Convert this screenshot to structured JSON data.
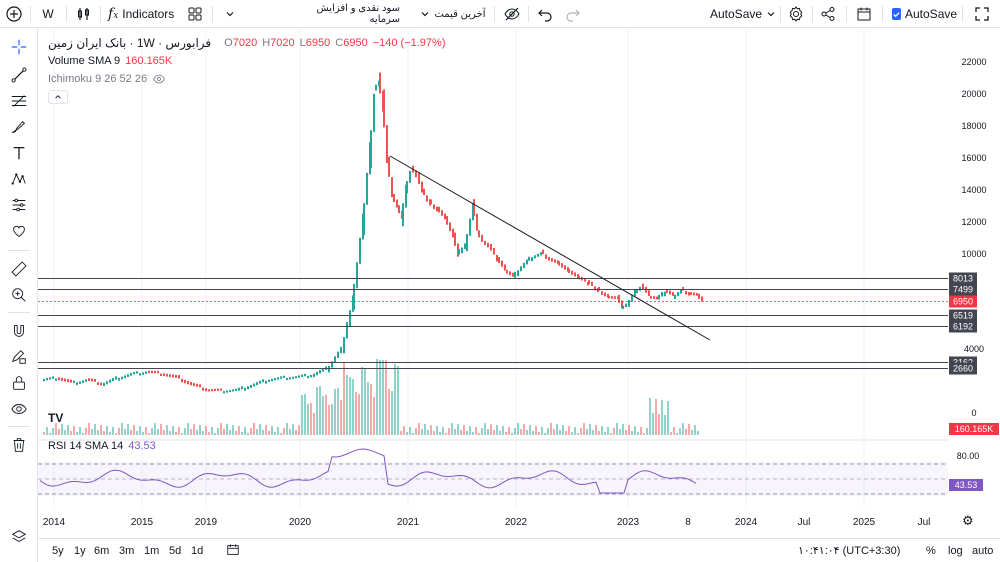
{
  "toolbar": {
    "symbol_label": "W",
    "indicators_label": "Indicators",
    "interval_label": "سود نقدی و افزایش سرمایه",
    "price_type_label": "آخرین قیمت",
    "autosave_label": "AutoSave",
    "autosave_checkbox_label": "AutoSave",
    "icons": [
      "add-icon",
      "bar-style-icon",
      "fx-icon",
      "layouts-icon",
      "chevron-down-icon",
      "eye-off-icon",
      "undo-icon",
      "redo-icon",
      "settings-icon",
      "share-icon",
      "calendar-icon",
      "fullscreen-icon"
    ]
  },
  "legend": {
    "symbol": "فرابورس · 1W · بانک ایران زمین",
    "open_label": "O",
    "open": "7020",
    "high_label": "H",
    "high": "7020",
    "low_label": "L",
    "low": "6950",
    "close_label": "C",
    "close": "6950",
    "change": "−140 (−1.97%)",
    "volume_label": "Volume SMA 9",
    "volume_value": "160.165K",
    "ichimoku_label": "Ichimoku 9 26 52 26",
    "rsi_label": "RSI 14 SMA 14",
    "rsi_value": "43.53"
  },
  "price_axis": {
    "ticks": [
      "22000",
      "20000",
      "18000",
      "16000",
      "14000",
      "12000",
      "10000",
      "4000",
      "0"
    ],
    "tags": [
      {
        "label": "8013",
        "value": 8013,
        "type": "line"
      },
      {
        "label": "7499",
        "value": 7499,
        "type": "line"
      },
      {
        "label": "6950",
        "value": 6950,
        "type": "current"
      },
      {
        "label": "6519",
        "value": 6519,
        "type": "line"
      },
      {
        "label": "6192",
        "value": 6192,
        "type": "line"
      },
      {
        "label": "3162",
        "value": 3162,
        "type": "line"
      },
      {
        "label": "2660",
        "value": 2660,
        "type": "line"
      }
    ],
    "volume_tag": "160.165K",
    "rsi_ticks": [
      "80.00"
    ],
    "rsi_tag": "43.53"
  },
  "time_axis": {
    "labels": [
      "2014",
      "2015",
      "2019",
      "2020",
      "2021",
      "2022",
      "2023",
      "8",
      "2024",
      "Jul",
      "2025",
      "Jul"
    ]
  },
  "bottombar": {
    "ranges": [
      "5y",
      "1y",
      "6m",
      "3m",
      "1m",
      "5d",
      "1d"
    ],
    "clock": "۱۰:۴۱:۰۴ (UTC+3:30)",
    "percent_label": "%",
    "log_label": "log",
    "auto_label": "auto"
  },
  "colors": {
    "up": "#26a69a",
    "down": "#ef5350",
    "current_price": "#f23645",
    "rsi_line": "#7e57c2",
    "hline": "#434651",
    "trendline": "#131722"
  }
}
